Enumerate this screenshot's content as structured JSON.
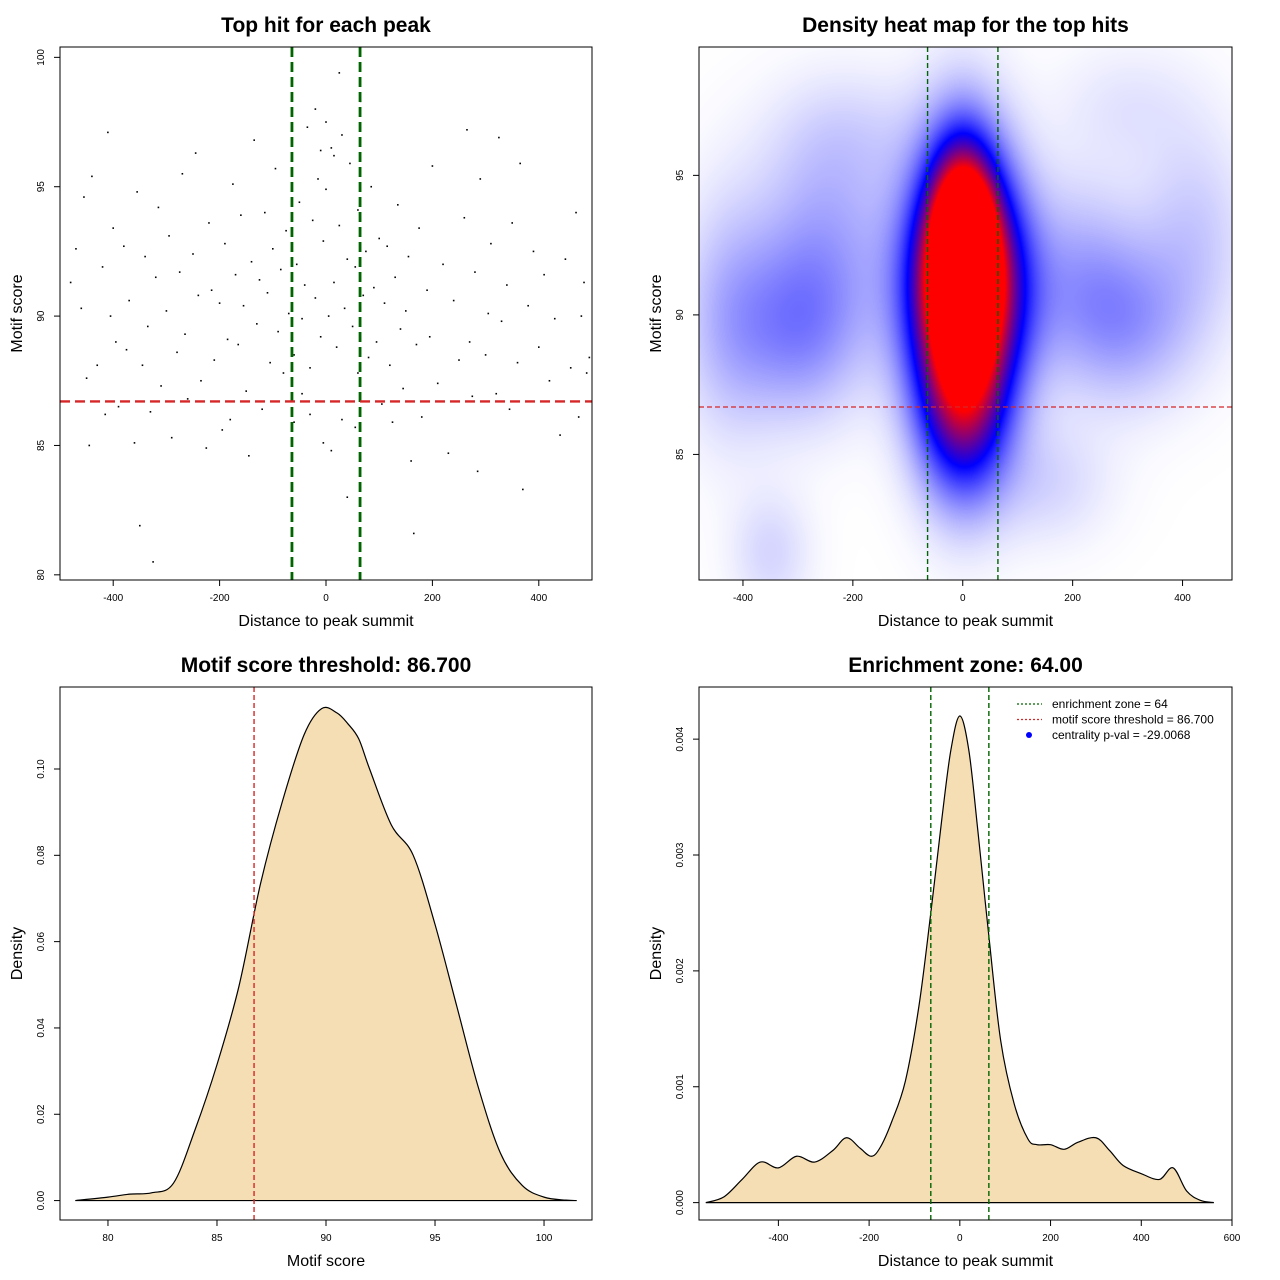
{
  "chart_data": [
    {
      "type": "scatter",
      "title": "Top hit for each peak",
      "xlabel": "Distance to peak summit",
      "ylabel": "Motif score",
      "xlim": [
        -500,
        500
      ],
      "ylim": [
        79.8,
        100.4
      ],
      "xticks": [
        -400,
        -200,
        0,
        200,
        400
      ],
      "yticks": [
        80,
        85,
        90,
        95,
        100
      ],
      "vlines": [
        -64,
        64
      ],
      "hline": 86.7,
      "points": [
        [
          -480,
          91.3
        ],
        [
          -470,
          92.6
        ],
        [
          -460,
          90.3
        ],
        [
          -455,
          94.6
        ],
        [
          -450,
          87.6
        ],
        [
          -445,
          85.0
        ],
        [
          -440,
          95.4
        ],
        [
          -430,
          88.1
        ],
        [
          -420,
          91.9
        ],
        [
          -415,
          86.2
        ],
        [
          -410,
          97.1
        ],
        [
          -405,
          90.0
        ],
        [
          -400,
          93.4
        ],
        [
          -395,
          89.0
        ],
        [
          -390,
          86.5
        ],
        [
          -380,
          92.7
        ],
        [
          -375,
          88.7
        ],
        [
          -370,
          90.6
        ],
        [
          -360,
          85.1
        ],
        [
          -355,
          94.8
        ],
        [
          -350,
          81.9
        ],
        [
          -345,
          88.1
        ],
        [
          -340,
          92.3
        ],
        [
          -335,
          89.6
        ],
        [
          -330,
          86.3
        ],
        [
          -325,
          80.5
        ],
        [
          -320,
          91.5
        ],
        [
          -315,
          94.2
        ],
        [
          -310,
          87.3
        ],
        [
          -300,
          90.2
        ],
        [
          -295,
          93.1
        ],
        [
          -290,
          85.3
        ],
        [
          -280,
          88.6
        ],
        [
          -275,
          91.7
        ],
        [
          -270,
          95.5
        ],
        [
          -265,
          89.3
        ],
        [
          -260,
          86.8
        ],
        [
          -250,
          92.4
        ],
        [
          -245,
          96.3
        ],
        [
          -240,
          90.8
        ],
        [
          -235,
          87.5
        ],
        [
          -225,
          84.9
        ],
        [
          -220,
          93.6
        ],
        [
          -215,
          91.0
        ],
        [
          -210,
          88.3
        ],
        [
          -200,
          90.5
        ],
        [
          -195,
          85.6
        ],
        [
          -190,
          92.8
        ],
        [
          -185,
          89.1
        ],
        [
          -180,
          86.0
        ],
        [
          -175,
          95.1
        ],
        [
          -170,
          91.6
        ],
        [
          -165,
          88.9
        ],
        [
          -160,
          93.9
        ],
        [
          -155,
          90.4
        ],
        [
          -150,
          87.1
        ],
        [
          -145,
          84.6
        ],
        [
          -140,
          92.1
        ],
        [
          -135,
          96.8
        ],
        [
          -130,
          89.7
        ],
        [
          -125,
          91.4
        ],
        [
          -120,
          86.4
        ],
        [
          -115,
          94.0
        ],
        [
          -110,
          90.9
        ],
        [
          -105,
          88.2
        ],
        [
          -100,
          92.6
        ],
        [
          -95,
          95.7
        ],
        [
          -90,
          89.4
        ],
        [
          -85,
          91.8
        ],
        [
          -80,
          87.8
        ],
        [
          -75,
          93.3
        ],
        [
          -70,
          90.1
        ],
        [
          -65,
          96.0
        ],
        [
          -60,
          88.5
        ],
        [
          -55,
          92.0
        ],
        [
          -50,
          94.4
        ],
        [
          -45,
          89.9
        ],
        [
          -40,
          91.2
        ],
        [
          -35,
          97.3
        ],
        [
          -30,
          88.0
        ],
        [
          -25,
          93.7
        ],
        [
          -20,
          90.7
        ],
        [
          -15,
          95.3
        ],
        [
          -10,
          89.2
        ],
        [
          -5,
          92.9
        ],
        [
          0,
          94.9
        ],
        [
          5,
          90.0
        ],
        [
          10,
          96.5
        ],
        [
          15,
          91.3
        ],
        [
          20,
          88.8
        ],
        [
          25,
          93.5
        ],
        [
          30,
          97.0
        ],
        [
          35,
          90.3
        ],
        [
          40,
          92.2
        ],
        [
          45,
          95.9
        ],
        [
          50,
          89.6
        ],
        [
          55,
          91.9
        ],
        [
          60,
          94.1
        ],
        [
          65,
          98.3
        ],
        [
          70,
          90.8
        ],
        [
          75,
          92.5
        ],
        [
          80,
          88.4
        ],
        [
          85,
          95.0
        ],
        [
          90,
          91.1
        ],
        [
          95,
          89.0
        ],
        [
          100,
          93.0
        ],
        [
          105,
          86.6
        ],
        [
          110,
          90.5
        ],
        [
          115,
          92.7
        ],
        [
          120,
          88.1
        ],
        [
          125,
          85.9
        ],
        [
          130,
          91.5
        ],
        [
          135,
          94.3
        ],
        [
          140,
          89.5
        ],
        [
          145,
          87.2
        ],
        [
          150,
          90.2
        ],
        [
          155,
          92.3
        ],
        [
          160,
          84.4
        ],
        [
          165,
          81.6
        ],
        [
          170,
          88.9
        ],
        [
          175,
          93.4
        ],
        [
          180,
          86.1
        ],
        [
          190,
          91.0
        ],
        [
          195,
          89.2
        ],
        [
          200,
          95.8
        ],
        [
          210,
          87.4
        ],
        [
          220,
          92.0
        ],
        [
          230,
          84.7
        ],
        [
          240,
          90.6
        ],
        [
          250,
          88.3
        ],
        [
          260,
          93.8
        ],
        [
          265,
          97.2
        ],
        [
          270,
          89.0
        ],
        [
          275,
          86.9
        ],
        [
          280,
          91.7
        ],
        [
          285,
          84.0
        ],
        [
          290,
          95.3
        ],
        [
          300,
          88.5
        ],
        [
          305,
          90.1
        ],
        [
          310,
          92.8
        ],
        [
          320,
          87.0
        ],
        [
          325,
          96.9
        ],
        [
          330,
          89.8
        ],
        [
          340,
          91.2
        ],
        [
          345,
          86.4
        ],
        [
          350,
          93.6
        ],
        [
          360,
          88.2
        ],
        [
          365,
          95.9
        ],
        [
          370,
          83.3
        ],
        [
          380,
          90.4
        ],
        [
          385,
          86.7
        ],
        [
          390,
          92.5
        ],
        [
          400,
          88.8
        ],
        [
          410,
          91.6
        ],
        [
          420,
          87.5
        ],
        [
          430,
          89.9
        ],
        [
          440,
          85.4
        ],
        [
          450,
          92.2
        ],
        [
          460,
          88.0
        ],
        [
          470,
          94.0
        ],
        [
          475,
          86.1
        ],
        [
          480,
          90.0
        ],
        [
          485,
          91.3
        ],
        [
          490,
          87.8
        ],
        [
          495,
          88.4
        ],
        [
          -20,
          98.0
        ],
        [
          25,
          99.4
        ],
        [
          0,
          97.5
        ],
        [
          -10,
          96.4
        ],
        [
          15,
          96.2
        ],
        [
          -5,
          85.1
        ],
        [
          10,
          84.8
        ],
        [
          40,
          83.0
        ],
        [
          30,
          86.0
        ],
        [
          -30,
          86.2
        ],
        [
          -45,
          87.0
        ],
        [
          55,
          85.7
        ],
        [
          60,
          87.8
        ],
        [
          -60,
          85.9
        ]
      ]
    },
    {
      "type": "heatmap",
      "title": "Density heat map for the top hits",
      "xlabel": "Distance to peak summit",
      "ylabel": "Motif score",
      "xlim": [
        -480,
        490
      ],
      "ylim": [
        80.5,
        99.6
      ],
      "xticks": [
        -400,
        -200,
        0,
        200,
        400
      ],
      "yticks": [
        85,
        90,
        95
      ],
      "vlines": [
        -64,
        64
      ],
      "hline": 86.7,
      "colors": [
        "#ffffff",
        "#0000ff",
        "#ff0000"
      ],
      "blobs": [
        [
          0,
          92.5,
          38,
          2.2,
          1.0
        ],
        [
          0,
          91.0,
          62,
          3.4,
          0.92
        ],
        [
          15,
          91.0,
          80,
          2.6,
          0.55
        ],
        [
          0,
          86.5,
          55,
          2.2,
          0.45
        ],
        [
          -300,
          89.5,
          85,
          2.2,
          0.22
        ],
        [
          -250,
          93.0,
          90,
          2.6,
          0.14
        ],
        [
          300,
          89.8,
          85,
          2.0,
          0.18
        ],
        [
          220,
          91.5,
          70,
          2.4,
          0.12
        ],
        [
          420,
          93.0,
          70,
          2.6,
          0.1
        ],
        [
          -430,
          90.0,
          60,
          3.0,
          0.12
        ],
        [
          -350,
          81.5,
          50,
          1.5,
          0.08
        ],
        [
          150,
          84.0,
          80,
          1.5,
          0.08
        ],
        [
          -200,
          96.5,
          100,
          1.6,
          0.06
        ],
        [
          300,
          97.5,
          90,
          1.5,
          0.05
        ]
      ]
    },
    {
      "type": "area",
      "title": "Motif score threshold: 86.700",
      "xlabel": "Motif score",
      "ylabel": "Density",
      "xlim": [
        77.8,
        102.2
      ],
      "ylim": [
        -0.0045,
        0.119
      ],
      "xticks": [
        80,
        85,
        90,
        95,
        100
      ],
      "yticks": [
        0.0,
        0.02,
        0.04,
        0.06,
        0.08,
        0.1
      ],
      "vline": 86.7,
      "x": [
        78.5,
        80,
        81,
        82,
        83,
        84,
        85,
        86,
        87,
        88,
        89,
        89.8,
        90.5,
        91,
        91.5,
        92,
        93,
        94,
        95,
        96,
        97,
        98,
        99,
        100,
        101,
        101.5
      ],
      "y": [
        0.0,
        0.0008,
        0.0015,
        0.0018,
        0.004,
        0.0165,
        0.0315,
        0.0495,
        0.0735,
        0.0925,
        0.108,
        0.114,
        0.113,
        0.1105,
        0.107,
        0.1,
        0.087,
        0.08,
        0.064,
        0.045,
        0.026,
        0.011,
        0.0035,
        0.0008,
        0.0001,
        0.0
      ]
    },
    {
      "type": "area",
      "title": "Enrichment zone: 64.00",
      "xlabel": "Distance to peak summit",
      "ylabel": "Density",
      "xlim": [
        -575,
        600
      ],
      "ylim": [
        -0.00015,
        0.00445
      ],
      "xticks": [
        -400,
        -200,
        0,
        200,
        400,
        600
      ],
      "yticks": [
        0.0,
        0.001,
        0.002,
        0.003,
        0.004
      ],
      "vlines": [
        -64,
        64
      ],
      "legend": {
        "position": "top-right",
        "entries": [
          "enrichment zone = 64",
          "motif score threshold = 86.700",
          "centrality p-val = -29.0068"
        ]
      },
      "x": [
        -560,
        -520,
        -480,
        -440,
        -400,
        -360,
        -320,
        -280,
        -250,
        -220,
        -195,
        -175,
        -150,
        -120,
        -90,
        -64,
        -40,
        -20,
        0,
        20,
        40,
        64,
        90,
        120,
        150,
        170,
        200,
        230,
        260,
        300,
        330,
        360,
        400,
        440,
        470,
        500,
        530,
        560
      ],
      "y": [
        0.0,
        5e-05,
        0.0002,
        0.00035,
        0.0003,
        0.0004,
        0.00035,
        0.00045,
        0.00056,
        0.00047,
        0.0004,
        0.00048,
        0.0007,
        0.00105,
        0.0017,
        0.0025,
        0.0033,
        0.0039,
        0.0042,
        0.0039,
        0.0032,
        0.0023,
        0.0014,
        0.00085,
        0.00055,
        0.0005,
        0.0005,
        0.00046,
        0.00052,
        0.00056,
        0.00045,
        0.00032,
        0.00025,
        0.0002,
        0.0003,
        0.0001,
        2e-05,
        0.0
      ]
    }
  ]
}
